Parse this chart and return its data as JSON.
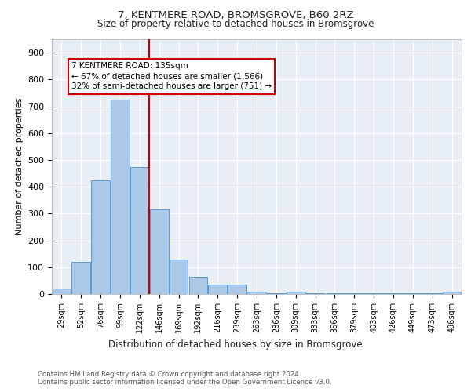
{
  "title1": "7, KENTMERE ROAD, BROMSGROVE, B60 2RZ",
  "title2": "Size of property relative to detached houses in Bromsgrove",
  "xlabel": "Distribution of detached houses by size in Bromsgrove",
  "ylabel": "Number of detached properties",
  "bin_labels": [
    "29sqm",
    "52sqm",
    "76sqm",
    "99sqm",
    "122sqm",
    "146sqm",
    "169sqm",
    "192sqm",
    "216sqm",
    "239sqm",
    "263sqm",
    "286sqm",
    "309sqm",
    "333sqm",
    "356sqm",
    "379sqm",
    "403sqm",
    "426sqm",
    "449sqm",
    "473sqm",
    "496sqm"
  ],
  "bin_values": [
    20,
    120,
    425,
    725,
    475,
    315,
    130,
    65,
    35,
    35,
    10,
    2,
    10,
    2,
    2,
    2,
    2,
    2,
    2,
    2,
    10
  ],
  "bar_color": "#aac8e8",
  "bar_edge_color": "#5a9bd5",
  "red_line_x": 4.5,
  "annotation_text": "7 KENTMERE ROAD: 135sqm\n← 67% of detached houses are smaller (1,566)\n32% of semi-detached houses are larger (751) →",
  "annotation_box_color": "#ffffff",
  "annotation_box_edge": "#cc0000",
  "ylim": [
    0,
    950
  ],
  "yticks": [
    0,
    100,
    200,
    300,
    400,
    500,
    600,
    700,
    800,
    900
  ],
  "footer1": "Contains HM Land Registry data © Crown copyright and database right 2024.",
  "footer2": "Contains public sector information licensed under the Open Government Licence v3.0.",
  "plot_bg": "#e8eef5"
}
